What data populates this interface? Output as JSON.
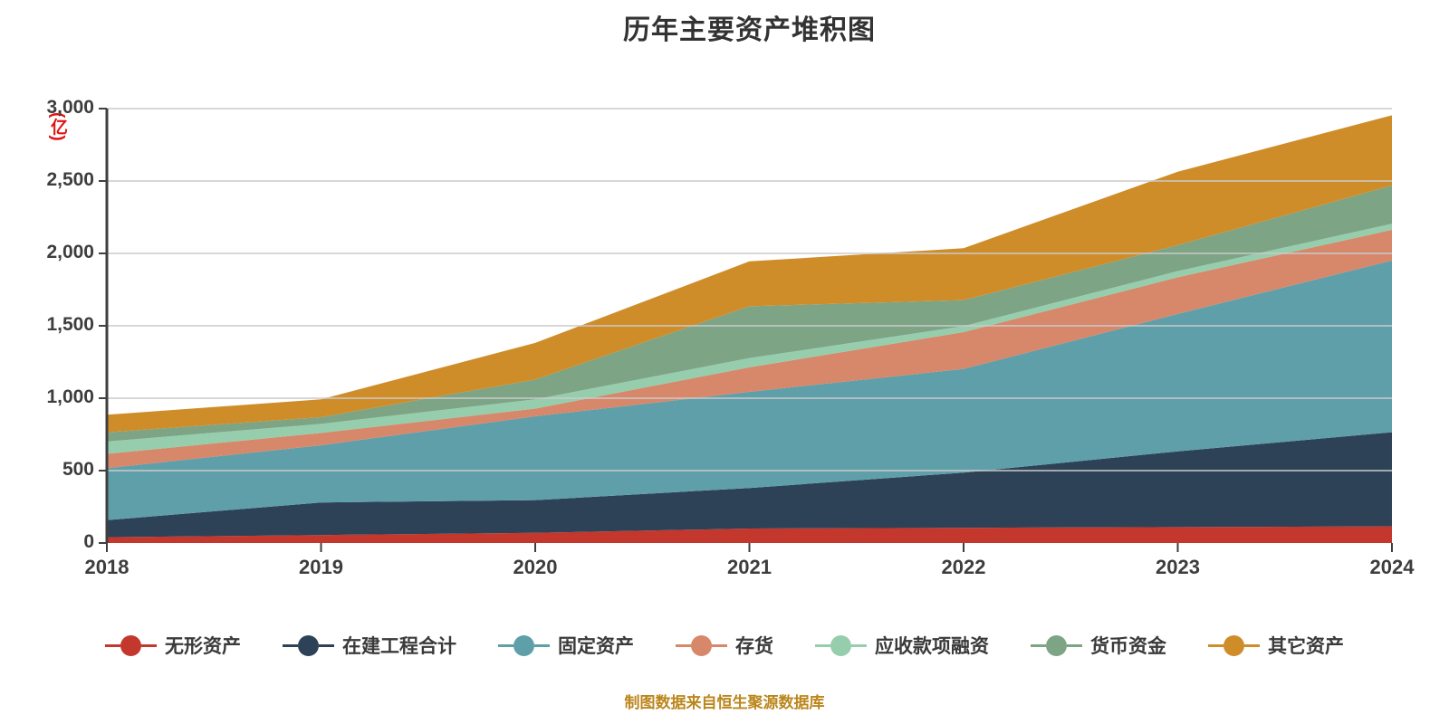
{
  "page": {
    "title": "历年主要资产堆积图",
    "caption": "制图数据来自恒生聚源数据库",
    "unit_label": "(亿)",
    "colors": {
      "title_text": "#333333",
      "caption_text": "#bb861c",
      "unit_label_text": "#e01414",
      "tick_label_text": "#3d3d3d",
      "gridline": "#cbcbcb",
      "axis_line": "#3f3f3f",
      "background": "#ffffff"
    }
  },
  "chart_data": {
    "type": "area",
    "stacked": true,
    "title": "历年主要资产堆积图",
    "x": [
      "2018",
      "2019",
      "2020",
      "2021",
      "2022",
      "2023",
      "2024"
    ],
    "xlabel": "",
    "ylabel": "(亿)",
    "ylim": [
      0,
      3000
    ],
    "ytick_step": 500,
    "ytick_labels": [
      "0",
      "500",
      "1,000",
      "1,500",
      "2,000",
      "2,500",
      "3,000"
    ],
    "grid": true,
    "legend_position": "bottom",
    "series": [
      {
        "name": "无形资产",
        "color": "#c4372d",
        "values": [
          40,
          55,
          70,
          100,
          105,
          110,
          115
        ]
      },
      {
        "name": "在建工程合计",
        "color": "#2e4257",
        "values": [
          118,
          225,
          226,
          280,
          381,
          523,
          650
        ]
      },
      {
        "name": "固定资产",
        "color": "#5f9fa9",
        "values": [
          359,
          395,
          579,
          664,
          716,
          949,
          1186
        ]
      },
      {
        "name": "存货",
        "color": "#d7876a",
        "values": [
          99,
          85,
          53,
          169,
          254,
          253,
          212
        ]
      },
      {
        "name": "应收款项融资",
        "color": "#96cdac",
        "values": [
          85,
          63,
          64,
          64,
          42,
          43,
          42
        ]
      },
      {
        "name": "货币资金",
        "color": "#7ca485",
        "values": [
          63,
          46,
          137,
          358,
          179,
          179,
          264
        ]
      },
      {
        "name": "其它资产",
        "color": "#cf8d2a",
        "values": [
          122,
          123,
          253,
          310,
          359,
          507,
          485
        ]
      }
    ],
    "stacked_totals": [
      886,
      992,
      1382,
      1945,
      2036,
      2564,
      2954
    ]
  }
}
